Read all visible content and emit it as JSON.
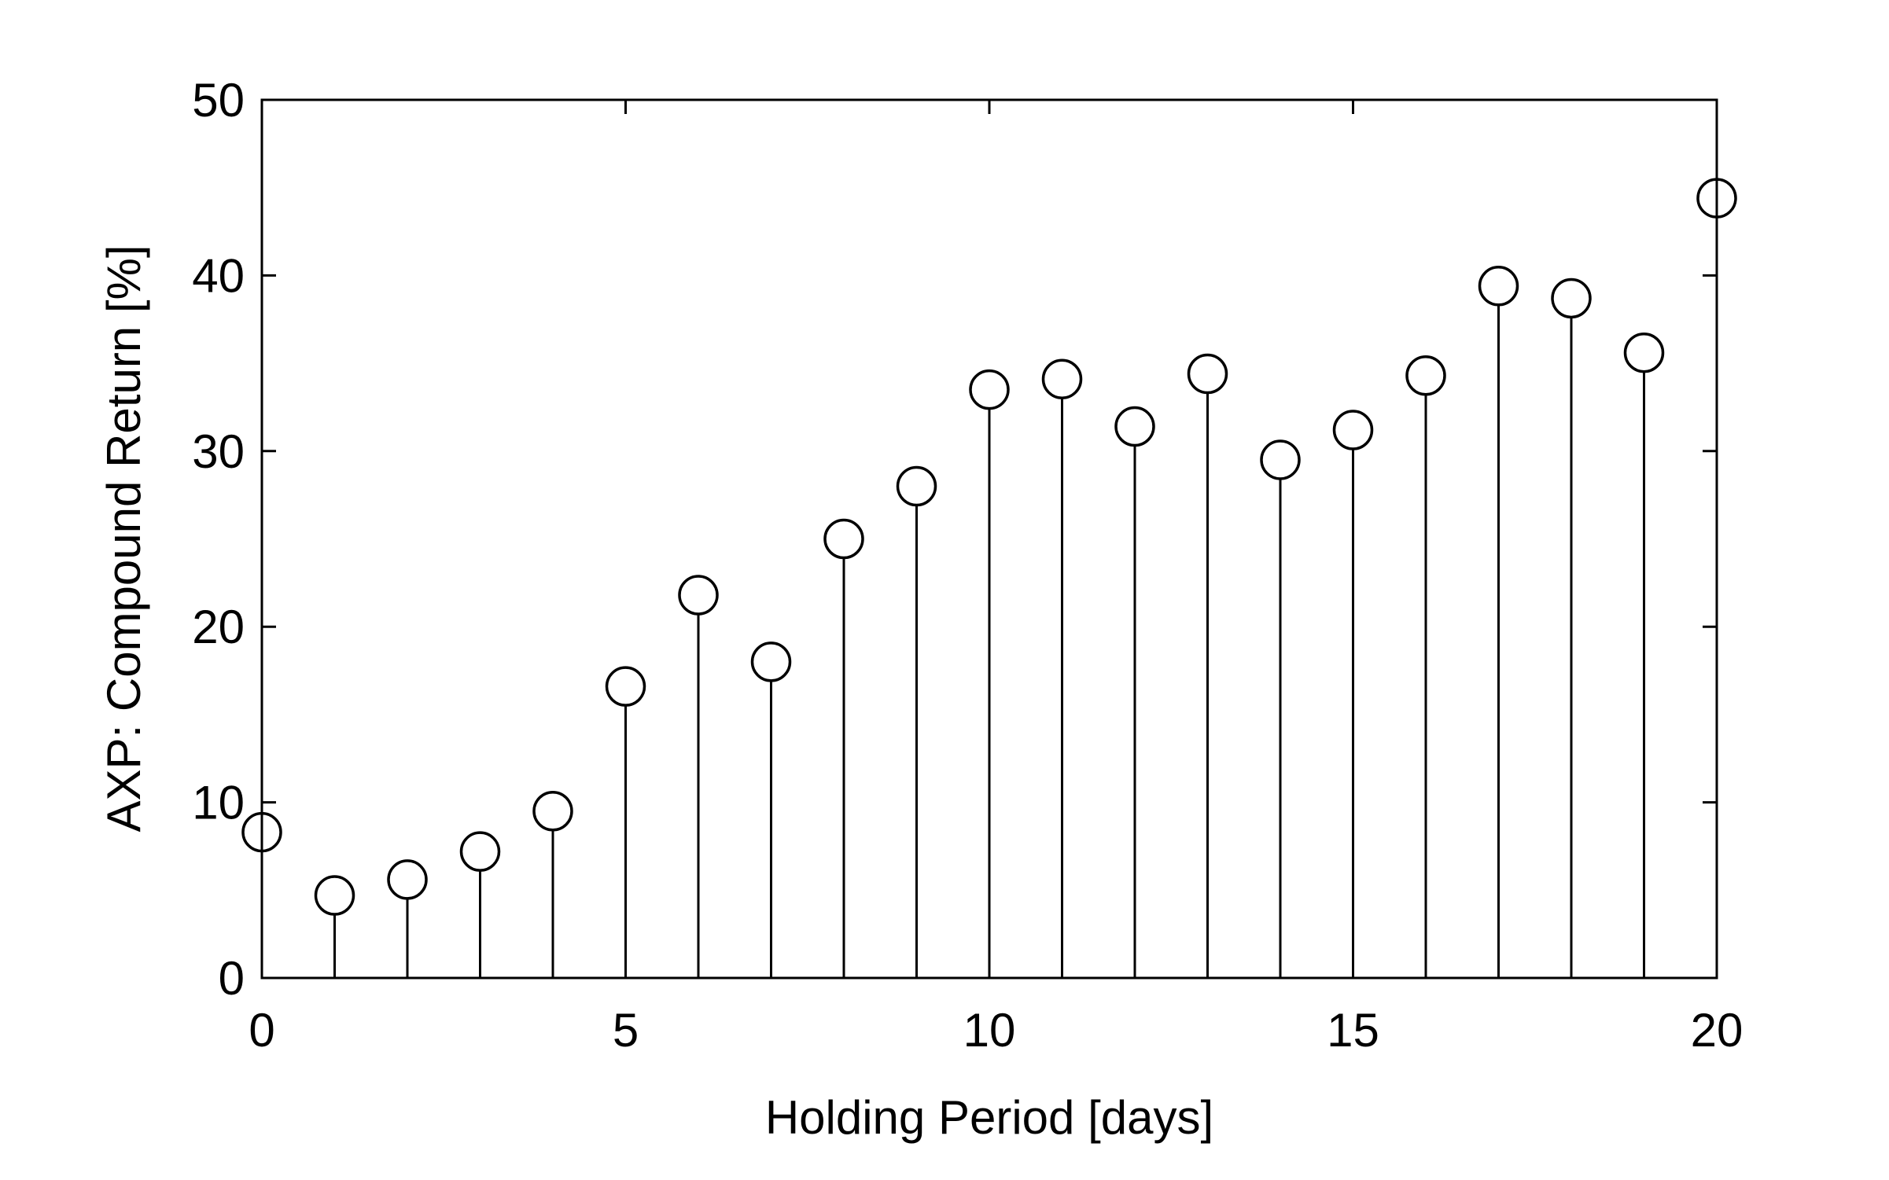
{
  "chart_data": {
    "type": "scatter",
    "style": "stem",
    "marker": "open-circle",
    "title": "",
    "xlabel": "Holding Period [days]",
    "ylabel": "AXP: Compound Return [%]",
    "xlim": [
      0,
      20
    ],
    "ylim": [
      0,
      50
    ],
    "xticks": [
      0,
      5,
      10,
      15,
      20
    ],
    "yticks": [
      0,
      10,
      20,
      30,
      40,
      50
    ],
    "xtick_labels": [
      "0",
      "5",
      "10",
      "15",
      "20"
    ],
    "ytick_labels": [
      "0",
      "10",
      "20",
      "30",
      "40",
      "50"
    ],
    "grid": false,
    "legend": "none",
    "color": "#000000",
    "series": [
      {
        "x": [
          0,
          1,
          2,
          3,
          4,
          5,
          6,
          7,
          8,
          9,
          10,
          11,
          12,
          13,
          14,
          15,
          16,
          17,
          18,
          19,
          20
        ],
        "y": [
          8.3,
          4.7,
          5.6,
          7.2,
          9.5,
          16.6,
          21.8,
          18.0,
          25.0,
          28.0,
          33.5,
          34.1,
          31.4,
          34.4,
          29.5,
          31.2,
          34.3,
          39.4,
          38.7,
          35.6,
          44.4
        ]
      }
    ]
  }
}
